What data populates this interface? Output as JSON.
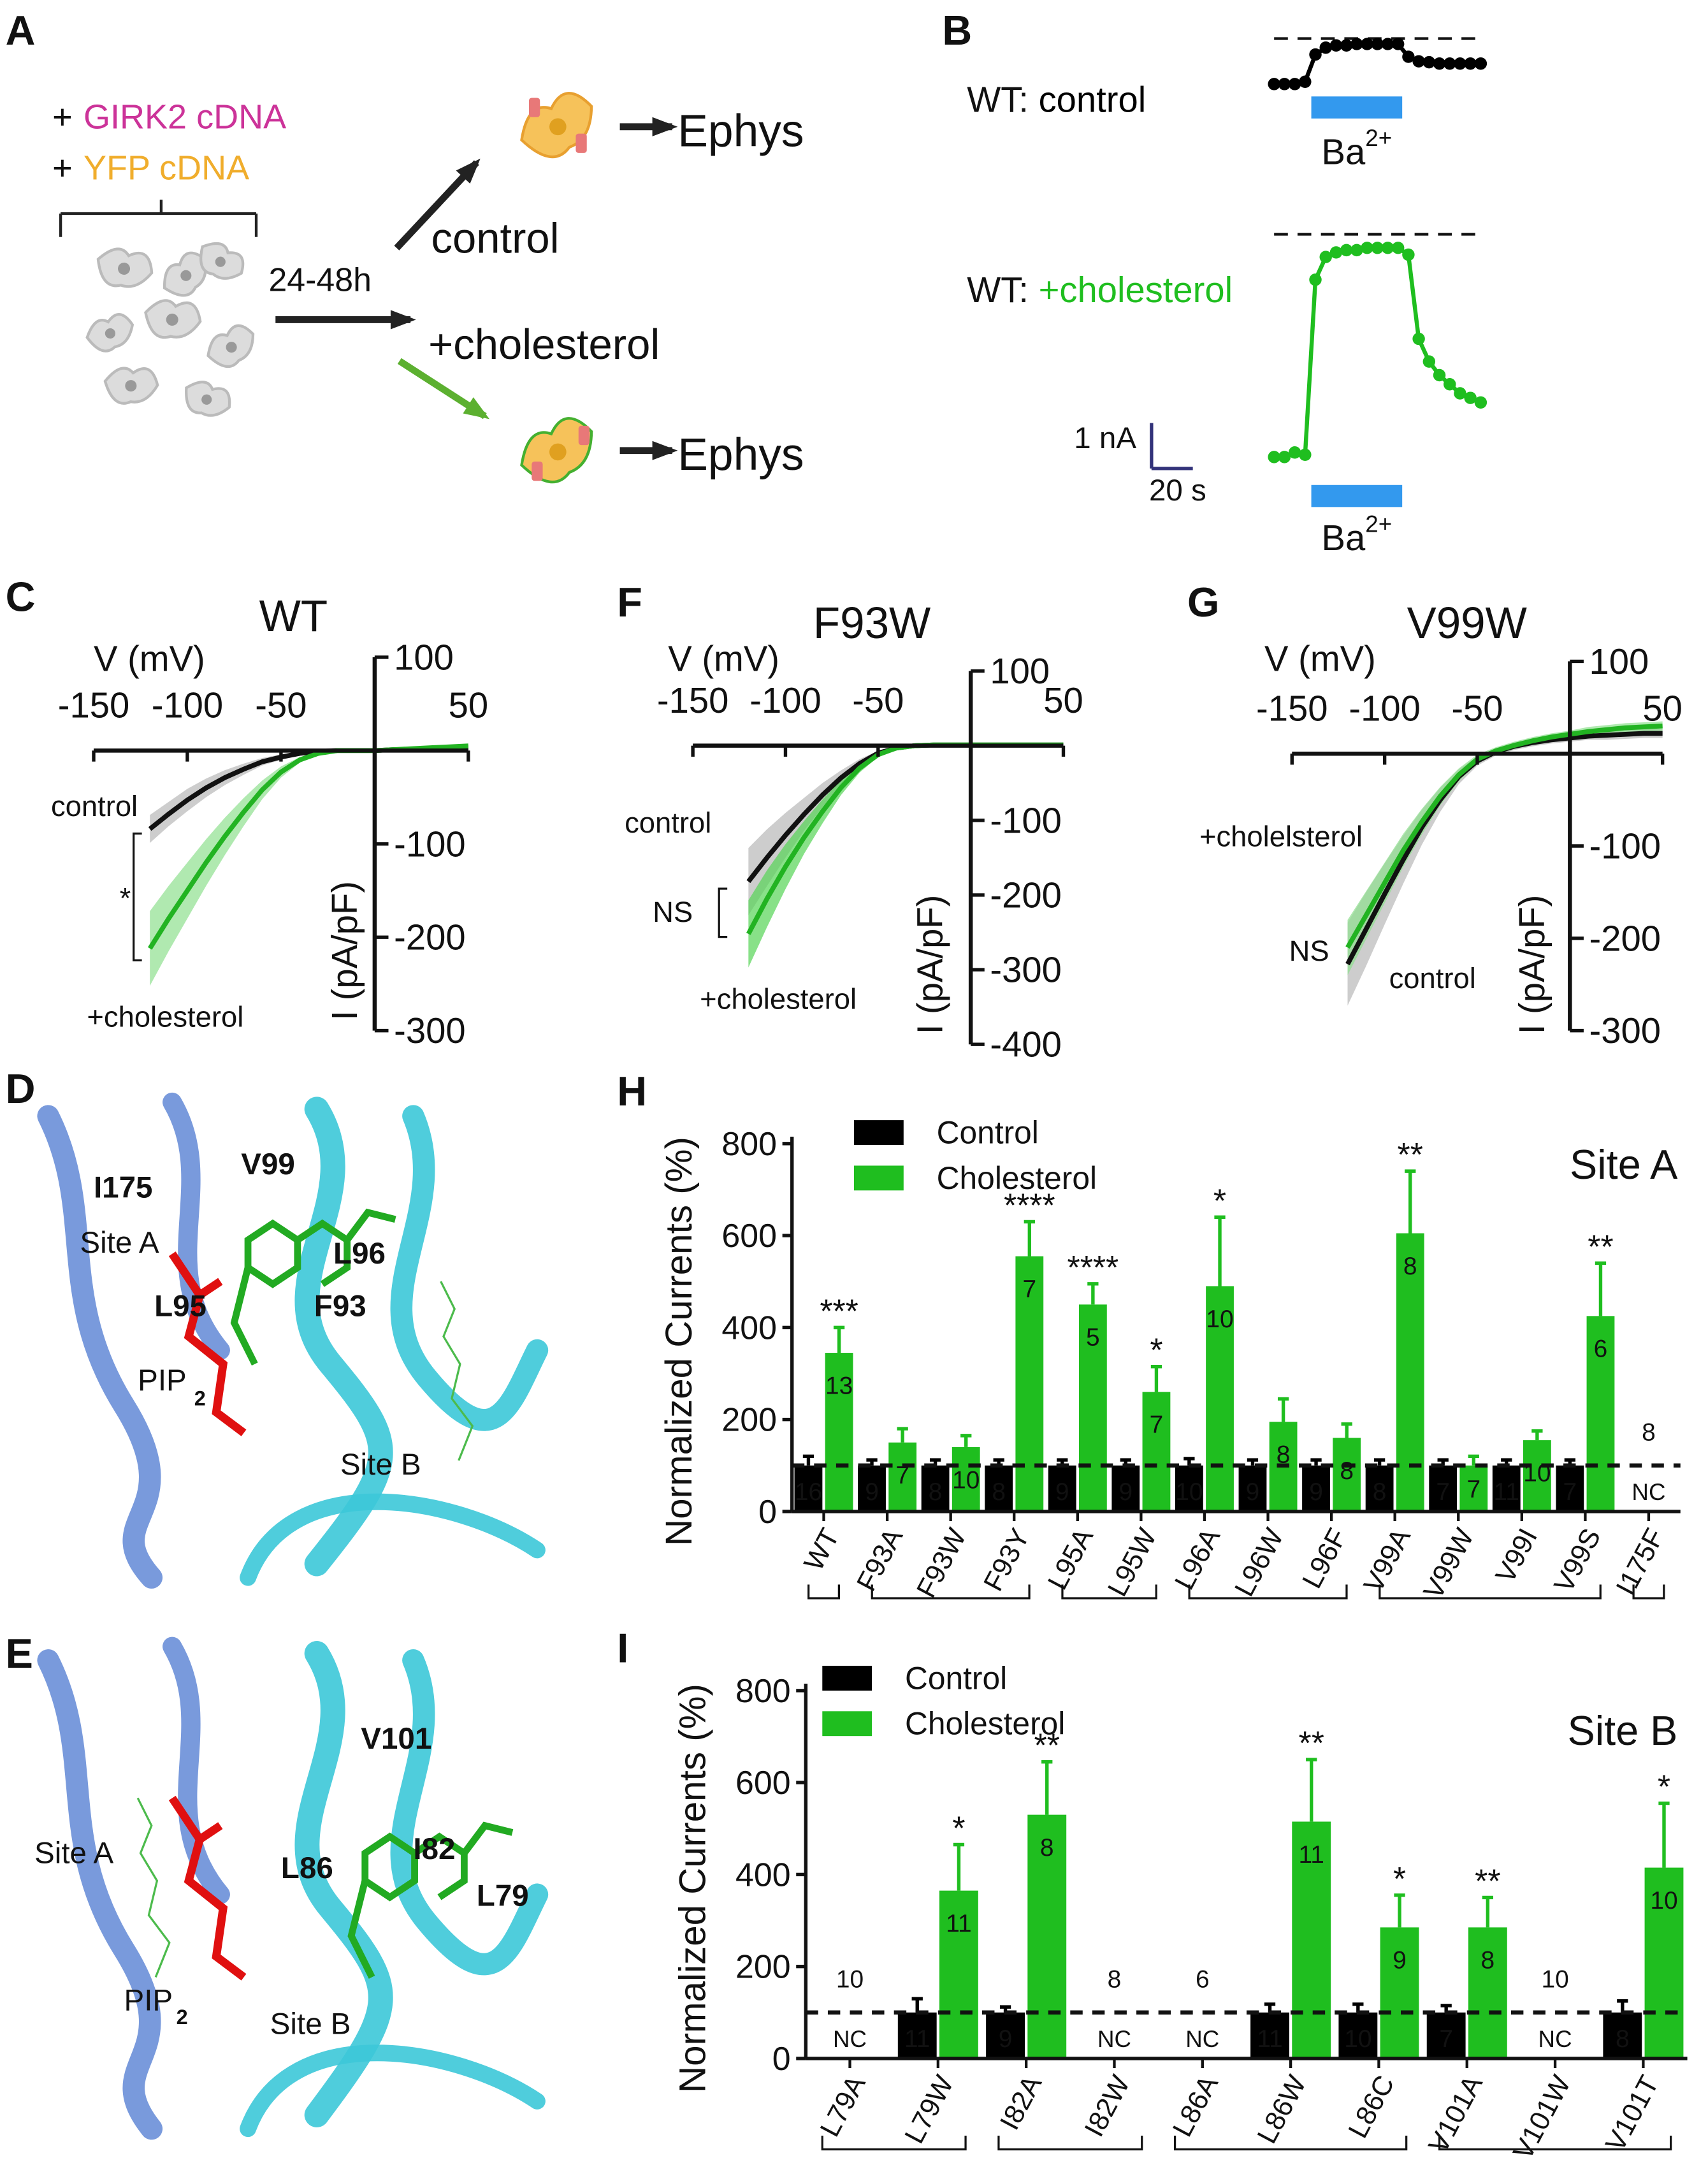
{
  "panels": {
    "A": {
      "letter": "A",
      "plus": "+",
      "cdna1": "GIRK2 cDNA",
      "cdna2": "YFP cDNA",
      "time": "24-48h",
      "control": "control",
      "cholesterol": "+cholesterol",
      "ephys": "Ephys"
    },
    "D": {
      "letter": "D",
      "labels": [
        {
          "text": "I175",
          "color": "#8b1a9b"
        },
        {
          "text": "V99",
          "color": "#8b1a9b"
        },
        {
          "text": "Site A",
          "color": "#3cb83c"
        },
        {
          "text": "L96",
          "color": "#8b1a9b"
        },
        {
          "text": "L95",
          "color": "#8b1a9b"
        },
        {
          "text": "F93",
          "color": "#f09ef0"
        },
        {
          "text": "PIP",
          "color": "#e01010"
        },
        {
          "text": "2",
          "color": "#e01010"
        },
        {
          "text": "Site B",
          "color": "#3cb83c"
        }
      ]
    },
    "E": {
      "letter": "E",
      "labels": [
        {
          "text": "V101",
          "color": "#8b1a9b"
        },
        {
          "text": "Site A",
          "color": "#3cb83c"
        },
        {
          "text": "L86",
          "color": "#8b1a9b"
        },
        {
          "text": "I82",
          "color": "#8b1a9b"
        },
        {
          "text": "L79",
          "color": "#8b1a9b"
        },
        {
          "text": "PIP",
          "color": "#e01010"
        },
        {
          "text": "2",
          "color": "#e01010"
        },
        {
          "text": "Site B",
          "color": "#3cb83c"
        }
      ]
    }
  },
  "chart_data": [
    {
      "type": "trace",
      "panel": "B",
      "label_prefix": "WT: ",
      "x": [
        0,
        5,
        10,
        15,
        20,
        25,
        30,
        35,
        40,
        45,
        50,
        55,
        60,
        65,
        70,
        75,
        80,
        85,
        90,
        95,
        100
      ],
      "series": [
        {
          "name": "control",
          "name_color": "#000000",
          "color": "#000000",
          "values": [
            -1.0,
            -1.0,
            -1.0,
            -0.95,
            -0.35,
            -0.2,
            -0.15,
            -0.15,
            -0.12,
            -0.12,
            -0.12,
            -0.12,
            -0.12,
            -0.4,
            -0.5,
            -0.52,
            -0.55,
            -0.55,
            -0.55,
            -0.55,
            -0.55
          ]
        },
        {
          "name": "+cholesterol",
          "name_color": "#1fbe1f",
          "color": "#1fbe1f",
          "values": [
            -4.9,
            -4.9,
            -4.8,
            -4.85,
            -1.0,
            -0.5,
            -0.4,
            -0.35,
            -0.35,
            -0.3,
            -0.3,
            -0.3,
            -0.3,
            -0.45,
            -2.3,
            -2.8,
            -3.1,
            -3.3,
            -3.5,
            -3.6,
            -3.7
          ]
        }
      ],
      "block": [
        18,
        62
      ],
      "block_color": "#3399ee",
      "block_label": {
        "base": "Ba",
        "sup": "2+"
      },
      "scale_bar": {
        "y_label": "1 nA",
        "x_label": "20 s"
      }
    },
    {
      "type": "iv",
      "panel": "C",
      "title": "WT",
      "xlabel": "V (mV)",
      "ylabel": "I (pA/pF)",
      "x": [
        -120,
        -110,
        -100,
        -90,
        -80,
        -70,
        -60,
        -50,
        -40,
        -30,
        -20,
        -10,
        0,
        10,
        20,
        30,
        40,
        50
      ],
      "series": [
        {
          "name": "control",
          "color": "#111111",
          "band_color": "#b8b8b8",
          "values": [
            -84,
            -68,
            -53,
            -40,
            -29,
            -20,
            -12,
            -7,
            -3,
            -1,
            0,
            0,
            0,
            1,
            1,
            2,
            2,
            3
          ],
          "errors": [
            15,
            13,
            12,
            10,
            8,
            6,
            4,
            3,
            2,
            1,
            1,
            1,
            1,
            1,
            1,
            1,
            1,
            1
          ]
        },
        {
          "name": "+cholesterol",
          "color": "#22b322",
          "band_color": "#8ee08e",
          "values": [
            -212,
            -180,
            -150,
            -120,
            -92,
            -66,
            -42,
            -23,
            -10,
            -3,
            0,
            0,
            0,
            1,
            2,
            3,
            4,
            5
          ],
          "errors": [
            40,
            35,
            30,
            25,
            20,
            15,
            10,
            6,
            3,
            2,
            1,
            1,
            1,
            1,
            1,
            1,
            1,
            1
          ]
        }
      ],
      "significance": "*",
      "xlim": [
        -150,
        50
      ],
      "xticks": [
        -150,
        -100,
        -50,
        50
      ],
      "ylim": [
        -300,
        100
      ],
      "yticks": [
        100,
        -100,
        -200,
        -300
      ]
    },
    {
      "type": "iv",
      "panel": "F",
      "title": "F93W",
      "xlabel": "V (mV)",
      "ylabel": "I (pA/pF)",
      "x": [
        -120,
        -110,
        -100,
        -90,
        -80,
        -70,
        -60,
        -50,
        -40,
        -30,
        -20,
        -10,
        0,
        10,
        20,
        30,
        40,
        50
      ],
      "series": [
        {
          "name": "control",
          "color": "#111111",
          "band_color": "#b8b8b8",
          "values": [
            -182,
            -150,
            -120,
            -92,
            -66,
            -43,
            -24,
            -10,
            -3,
            0,
            1,
            1,
            1,
            1,
            1,
            1,
            1,
            1
          ],
          "errors": [
            45,
            38,
            30,
            22,
            16,
            10,
            6,
            3,
            2,
            1,
            1,
            1,
            1,
            1,
            1,
            1,
            1,
            1
          ]
        },
        {
          "name": "+cholesterol",
          "color": "#22b322",
          "band_color": "#55d455",
          "values": [
            -252,
            -205,
            -162,
            -123,
            -88,
            -56,
            -30,
            -12,
            -3,
            0,
            1,
            1,
            1,
            1,
            1,
            1,
            1,
            1
          ],
          "errors": [
            45,
            38,
            30,
            22,
            16,
            10,
            6,
            3,
            2,
            1,
            1,
            1,
            1,
            1,
            1,
            1,
            1,
            1
          ]
        }
      ],
      "significance": "NS",
      "xlim": [
        -150,
        50
      ],
      "xticks": [
        -150,
        -100,
        -50,
        50
      ],
      "ylim": [
        -400,
        100
      ],
      "yticks": [
        100,
        -100,
        -200,
        -300,
        -400
      ]
    },
    {
      "type": "iv",
      "panel": "G",
      "title": "V99W",
      "xlabel": "V (mV)",
      "ylabel": "I (pA/pF)",
      "x": [
        -120,
        -110,
        -100,
        -90,
        -80,
        -70,
        -60,
        -50,
        -40,
        -30,
        -20,
        -10,
        0,
        10,
        20,
        30,
        40,
        50
      ],
      "series": [
        {
          "name": "control",
          "color": "#111111",
          "band_color": "#b8b8b8",
          "values": [
            -228,
            -190,
            -152,
            -115,
            -80,
            -50,
            -25,
            -8,
            2,
            8,
            12,
            15,
            17,
            19,
            20,
            21,
            22,
            22
          ],
          "errors": [
            45,
            40,
            33,
            26,
            19,
            13,
            8,
            5,
            4,
            4,
            4,
            4,
            4,
            4,
            5,
            5,
            5,
            5
          ]
        },
        {
          "name": "+cholelsterol",
          "color": "#22b322",
          "band_color": "#8ee08e",
          "values": [
            -210,
            -175,
            -140,
            -105,
            -74,
            -46,
            -23,
            -6,
            3,
            9,
            14,
            18,
            21,
            24,
            26,
            28,
            29,
            30
          ],
          "errors": [
            30,
            26,
            22,
            18,
            14,
            10,
            7,
            5,
            4,
            4,
            4,
            4,
            4,
            5,
            5,
            5,
            5,
            5
          ]
        }
      ],
      "significance": "NS",
      "xlim": [
        -150,
        50
      ],
      "xticks": [
        -150,
        -100,
        -50,
        50
      ],
      "ylim": [
        -300,
        100
      ],
      "yticks": [
        100,
        -100,
        -200,
        -300
      ]
    },
    {
      "type": "bar",
      "panel": "H",
      "title": "Site A",
      "ylabel": "Normalized Currents (%)",
      "categories": [
        "WT",
        "F93A",
        "F93W",
        "F93Y",
        "L95A",
        "L95W",
        "L96A",
        "L96W",
        "L96F",
        "V99A",
        "V99W",
        "V99I",
        "V99S",
        "I175F"
      ],
      "series": [
        {
          "name": "Control",
          "color": "#000000",
          "values": [
            100,
            100,
            100,
            100,
            100,
            100,
            100,
            100,
            100,
            100,
            100,
            100,
            100,
            null
          ],
          "errors": [
            20,
            12,
            12,
            12,
            12,
            12,
            15,
            12,
            12,
            12,
            12,
            12,
            12,
            null
          ],
          "n": [
            16,
            9,
            8,
            8,
            9,
            9,
            10,
            9,
            9,
            8,
            7,
            11,
            7,
            null
          ]
        },
        {
          "name": "Cholesterol",
          "color": "#1fbe1f",
          "values": [
            345,
            150,
            140,
            555,
            450,
            260,
            490,
            195,
            160,
            605,
            100,
            155,
            425,
            null
          ],
          "errors": [
            55,
            30,
            25,
            75,
            45,
            55,
            150,
            50,
            30,
            135,
            20,
            20,
            115,
            null
          ],
          "n": [
            13,
            7,
            10,
            7,
            5,
            7,
            10,
            8,
            8,
            8,
            7,
            10,
            6,
            null
          ]
        }
      ],
      "significance": [
        "***",
        null,
        null,
        "****",
        "****",
        "*",
        "*",
        null,
        null,
        "**",
        null,
        null,
        "**",
        null
      ],
      "nc_n": [
        null,
        null,
        null,
        null,
        null,
        null,
        null,
        null,
        null,
        null,
        null,
        null,
        null,
        8
      ],
      "nc_label": "NC",
      "reference_line": 100,
      "ylim": [
        0,
        800
      ],
      "yticks": [
        0,
        200,
        400,
        600,
        800
      ]
    },
    {
      "type": "bar",
      "panel": "I",
      "title": "Site B",
      "ylabel": "Normalized Currents (%)",
      "categories": [
        "L79A",
        "L79W",
        "I82A",
        "I82W",
        "L86A",
        "L86W",
        "L86C",
        "V101A",
        "V101W",
        "V101T"
      ],
      "series": [
        {
          "name": "Control",
          "color": "#000000",
          "values": [
            null,
            100,
            100,
            null,
            null,
            100,
            100,
            100,
            null,
            100
          ],
          "errors": [
            null,
            30,
            12,
            null,
            null,
            18,
            18,
            15,
            null,
            25
          ],
          "n": [
            null,
            11,
            9,
            null,
            null,
            11,
            10,
            7,
            null,
            8
          ]
        },
        {
          "name": "Cholesterol",
          "color": "#1fbe1f",
          "values": [
            null,
            365,
            530,
            null,
            null,
            515,
            285,
            285,
            null,
            415
          ],
          "errors": [
            null,
            100,
            115,
            null,
            null,
            135,
            70,
            65,
            null,
            140
          ],
          "n": [
            null,
            11,
            8,
            null,
            null,
            11,
            9,
            8,
            null,
            10
          ]
        }
      ],
      "significance": [
        null,
        "*",
        "**",
        null,
        null,
        "**",
        "*",
        "**",
        null,
        "*"
      ],
      "nc_n": [
        10,
        null,
        null,
        8,
        6,
        null,
        null,
        null,
        10,
        null
      ],
      "nc_label": "NC",
      "reference_line": 100,
      "ylim": [
        0,
        800
      ],
      "yticks": [
        0,
        200,
        400,
        600,
        800
      ]
    }
  ]
}
